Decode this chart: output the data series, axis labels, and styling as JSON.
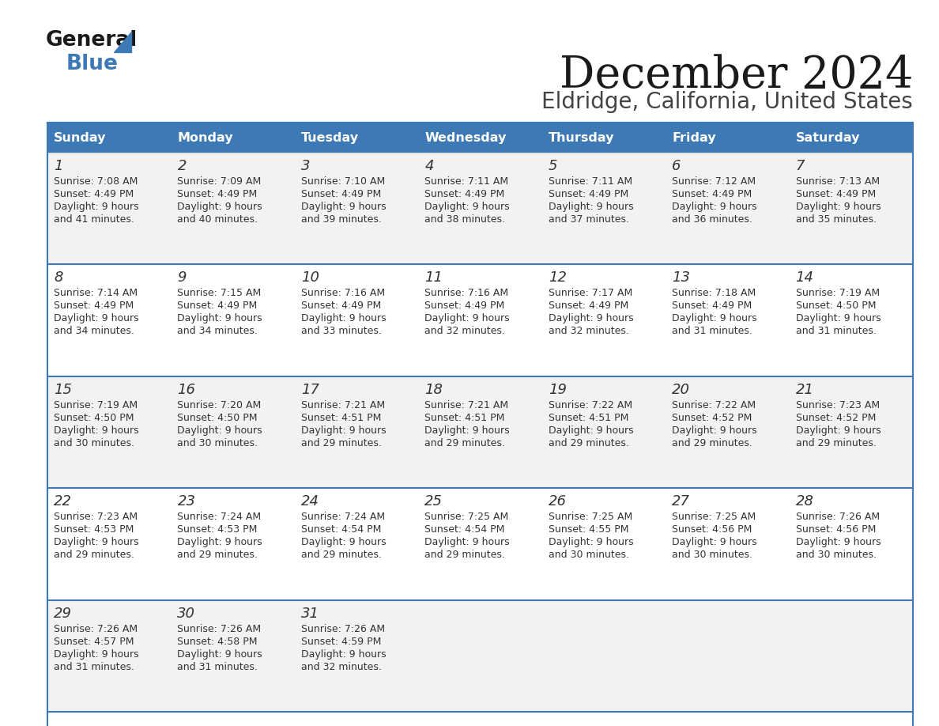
{
  "title": "December 2024",
  "subtitle": "Eldridge, California, United States",
  "header_color": "#3d7ab5",
  "header_text_color": "#ffffff",
  "day_names": [
    "Sunday",
    "Monday",
    "Tuesday",
    "Wednesday",
    "Thursday",
    "Friday",
    "Saturday"
  ],
  "row_bg_odd": "#f2f2f2",
  "row_bg_even": "#ffffff",
  "cell_border_color": "#3d7ab5",
  "day_number_color": "#333333",
  "info_text_color": "#333333",
  "days": [
    {
      "day": 1,
      "col": 0,
      "row": 0,
      "sunrise": "7:08 AM",
      "sunset": "4:49 PM",
      "daylight_h": "9 hours",
      "daylight_m": "41 minutes."
    },
    {
      "day": 2,
      "col": 1,
      "row": 0,
      "sunrise": "7:09 AM",
      "sunset": "4:49 PM",
      "daylight_h": "9 hours",
      "daylight_m": "40 minutes."
    },
    {
      "day": 3,
      "col": 2,
      "row": 0,
      "sunrise": "7:10 AM",
      "sunset": "4:49 PM",
      "daylight_h": "9 hours",
      "daylight_m": "39 minutes."
    },
    {
      "day": 4,
      "col": 3,
      "row": 0,
      "sunrise": "7:11 AM",
      "sunset": "4:49 PM",
      "daylight_h": "9 hours",
      "daylight_m": "38 minutes."
    },
    {
      "day": 5,
      "col": 4,
      "row": 0,
      "sunrise": "7:11 AM",
      "sunset": "4:49 PM",
      "daylight_h": "9 hours",
      "daylight_m": "37 minutes."
    },
    {
      "day": 6,
      "col": 5,
      "row": 0,
      "sunrise": "7:12 AM",
      "sunset": "4:49 PM",
      "daylight_h": "9 hours",
      "daylight_m": "36 minutes."
    },
    {
      "day": 7,
      "col": 6,
      "row": 0,
      "sunrise": "7:13 AM",
      "sunset": "4:49 PM",
      "daylight_h": "9 hours",
      "daylight_m": "35 minutes."
    },
    {
      "day": 8,
      "col": 0,
      "row": 1,
      "sunrise": "7:14 AM",
      "sunset": "4:49 PM",
      "daylight_h": "9 hours",
      "daylight_m": "34 minutes."
    },
    {
      "day": 9,
      "col": 1,
      "row": 1,
      "sunrise": "7:15 AM",
      "sunset": "4:49 PM",
      "daylight_h": "9 hours",
      "daylight_m": "34 minutes."
    },
    {
      "day": 10,
      "col": 2,
      "row": 1,
      "sunrise": "7:16 AM",
      "sunset": "4:49 PM",
      "daylight_h": "9 hours",
      "daylight_m": "33 minutes."
    },
    {
      "day": 11,
      "col": 3,
      "row": 1,
      "sunrise": "7:16 AM",
      "sunset": "4:49 PM",
      "daylight_h": "9 hours",
      "daylight_m": "32 minutes."
    },
    {
      "day": 12,
      "col": 4,
      "row": 1,
      "sunrise": "7:17 AM",
      "sunset": "4:49 PM",
      "daylight_h": "9 hours",
      "daylight_m": "32 minutes."
    },
    {
      "day": 13,
      "col": 5,
      "row": 1,
      "sunrise": "7:18 AM",
      "sunset": "4:49 PM",
      "daylight_h": "9 hours",
      "daylight_m": "31 minutes."
    },
    {
      "day": 14,
      "col": 6,
      "row": 1,
      "sunrise": "7:19 AM",
      "sunset": "4:50 PM",
      "daylight_h": "9 hours",
      "daylight_m": "31 minutes."
    },
    {
      "day": 15,
      "col": 0,
      "row": 2,
      "sunrise": "7:19 AM",
      "sunset": "4:50 PM",
      "daylight_h": "9 hours",
      "daylight_m": "30 minutes."
    },
    {
      "day": 16,
      "col": 1,
      "row": 2,
      "sunrise": "7:20 AM",
      "sunset": "4:50 PM",
      "daylight_h": "9 hours",
      "daylight_m": "30 minutes."
    },
    {
      "day": 17,
      "col": 2,
      "row": 2,
      "sunrise": "7:21 AM",
      "sunset": "4:51 PM",
      "daylight_h": "9 hours",
      "daylight_m": "29 minutes."
    },
    {
      "day": 18,
      "col": 3,
      "row": 2,
      "sunrise": "7:21 AM",
      "sunset": "4:51 PM",
      "daylight_h": "9 hours",
      "daylight_m": "29 minutes."
    },
    {
      "day": 19,
      "col": 4,
      "row": 2,
      "sunrise": "7:22 AM",
      "sunset": "4:51 PM",
      "daylight_h": "9 hours",
      "daylight_m": "29 minutes."
    },
    {
      "day": 20,
      "col": 5,
      "row": 2,
      "sunrise": "7:22 AM",
      "sunset": "4:52 PM",
      "daylight_h": "9 hours",
      "daylight_m": "29 minutes."
    },
    {
      "day": 21,
      "col": 6,
      "row": 2,
      "sunrise": "7:23 AM",
      "sunset": "4:52 PM",
      "daylight_h": "9 hours",
      "daylight_m": "29 minutes."
    },
    {
      "day": 22,
      "col": 0,
      "row": 3,
      "sunrise": "7:23 AM",
      "sunset": "4:53 PM",
      "daylight_h": "9 hours",
      "daylight_m": "29 minutes."
    },
    {
      "day": 23,
      "col": 1,
      "row": 3,
      "sunrise": "7:24 AM",
      "sunset": "4:53 PM",
      "daylight_h": "9 hours",
      "daylight_m": "29 minutes."
    },
    {
      "day": 24,
      "col": 2,
      "row": 3,
      "sunrise": "7:24 AM",
      "sunset": "4:54 PM",
      "daylight_h": "9 hours",
      "daylight_m": "29 minutes."
    },
    {
      "day": 25,
      "col": 3,
      "row": 3,
      "sunrise": "7:25 AM",
      "sunset": "4:54 PM",
      "daylight_h": "9 hours",
      "daylight_m": "29 minutes."
    },
    {
      "day": 26,
      "col": 4,
      "row": 3,
      "sunrise": "7:25 AM",
      "sunset": "4:55 PM",
      "daylight_h": "9 hours",
      "daylight_m": "30 minutes."
    },
    {
      "day": 27,
      "col": 5,
      "row": 3,
      "sunrise": "7:25 AM",
      "sunset": "4:56 PM",
      "daylight_h": "9 hours",
      "daylight_m": "30 minutes."
    },
    {
      "day": 28,
      "col": 6,
      "row": 3,
      "sunrise": "7:26 AM",
      "sunset": "4:56 PM",
      "daylight_h": "9 hours",
      "daylight_m": "30 minutes."
    },
    {
      "day": 29,
      "col": 0,
      "row": 4,
      "sunrise": "7:26 AM",
      "sunset": "4:57 PM",
      "daylight_h": "9 hours",
      "daylight_m": "31 minutes."
    },
    {
      "day": 30,
      "col": 1,
      "row": 4,
      "sunrise": "7:26 AM",
      "sunset": "4:58 PM",
      "daylight_h": "9 hours",
      "daylight_m": "31 minutes."
    },
    {
      "day": 31,
      "col": 2,
      "row": 4,
      "sunrise": "7:26 AM",
      "sunset": "4:59 PM",
      "daylight_h": "9 hours",
      "daylight_m": "32 minutes."
    }
  ],
  "num_rows": 5,
  "num_cols": 7
}
